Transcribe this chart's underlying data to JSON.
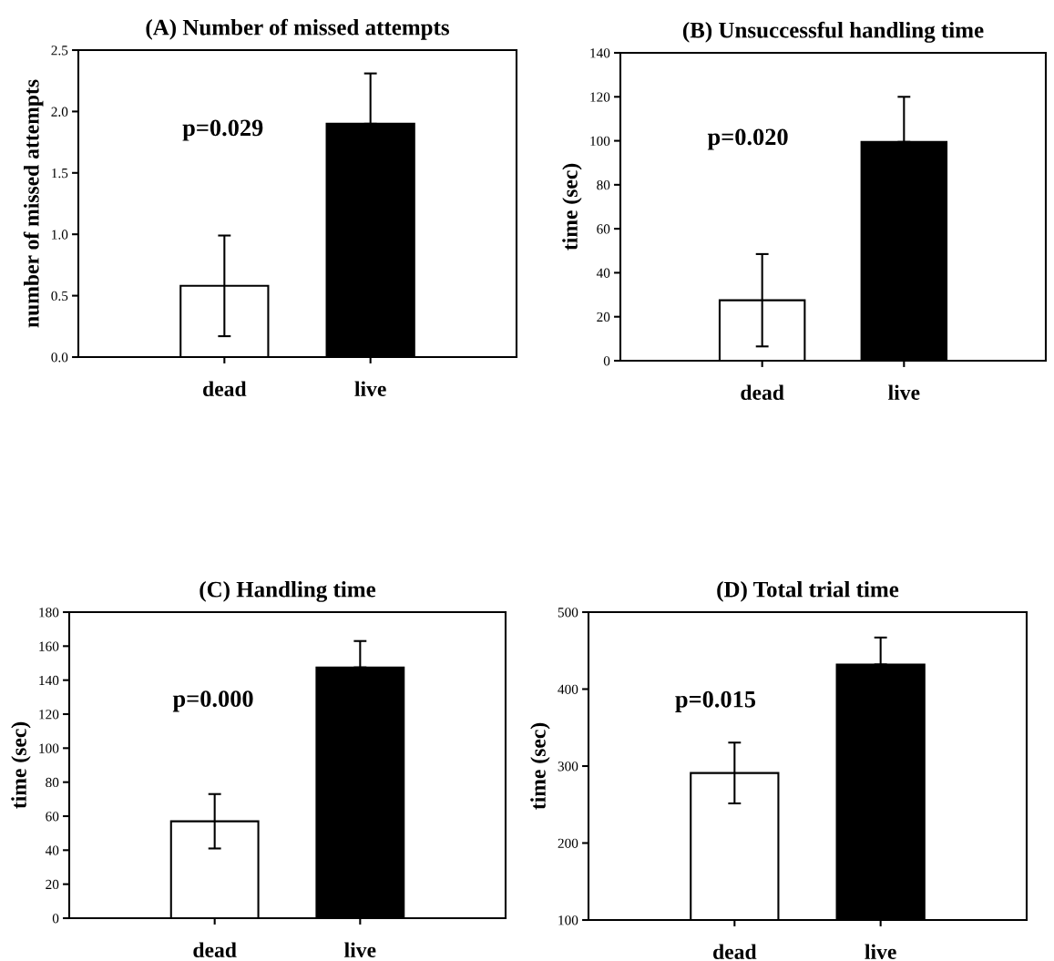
{
  "chart_data": [
    {
      "type": "bar",
      "title": "(A) Number of missed attempts",
      "ylabel": "number of missed attempts",
      "categories": [
        "dead",
        "live"
      ],
      "values": [
        0.58,
        1.9
      ],
      "colors": [
        "#ffffff",
        "#000000"
      ],
      "errors": [
        0.41,
        [
          1.9,
          2.31
        ]
      ],
      "ylim": [
        0,
        2.5
      ],
      "yticks": [
        {
          "value": 0,
          "label": "0.0"
        },
        {
          "value": 0.5,
          "label": "0.5"
        },
        {
          "value": 1,
          "label": "1.0"
        },
        {
          "value": 1.5,
          "label": "1.5"
        },
        {
          "value": 2,
          "label": "2.0"
        },
        {
          "value": 2.5,
          "label": "2.5"
        }
      ],
      "annotations": [
        "p=0.029"
      ],
      "grid": false,
      "legend": false
    },
    {
      "type": "bar",
      "title": "(B) Unsuccessful handling time",
      "ylabel": "time (sec)",
      "categories": [
        "dead",
        "live"
      ],
      "values": [
        27.5,
        99.5
      ],
      "colors": [
        "#ffffff",
        "#000000"
      ],
      "errors": [
        21,
        [
          99.5,
          120
        ]
      ],
      "ylim": [
        0,
        140
      ],
      "yticks": [
        0,
        20,
        40,
        60,
        80,
        100,
        120,
        140
      ],
      "annotations": [
        "p=0.020"
      ],
      "grid": false,
      "legend": false
    },
    {
      "type": "bar",
      "title": "(C) Handling time",
      "ylabel": "time (sec)",
      "categories": [
        "dead",
        "live"
      ],
      "values": [
        57,
        147.5
      ],
      "colors": [
        "#ffffff",
        "#000000"
      ],
      "errors": [
        16,
        [
          147.5,
          163
        ]
      ],
      "ylim": [
        0,
        180
      ],
      "yticks": [
        0,
        20,
        40,
        60,
        80,
        100,
        120,
        140,
        160,
        180
      ],
      "annotations": [
        "p=0.000"
      ],
      "grid": false,
      "legend": false
    },
    {
      "type": "bar",
      "title": "(D) Total trial time",
      "ylabel": "time (sec)",
      "categories": [
        "dead",
        "live"
      ],
      "values": [
        291,
        432
      ],
      "colors": [
        "#ffffff",
        "#000000"
      ],
      "errors": [
        39.5,
        [
          432,
          467
        ]
      ],
      "ylim": [
        100,
        500
      ],
      "yticks": [
        100,
        200,
        300,
        400,
        500
      ],
      "annotations": [
        "p=0.015"
      ],
      "grid": false,
      "legend": false
    }
  ]
}
